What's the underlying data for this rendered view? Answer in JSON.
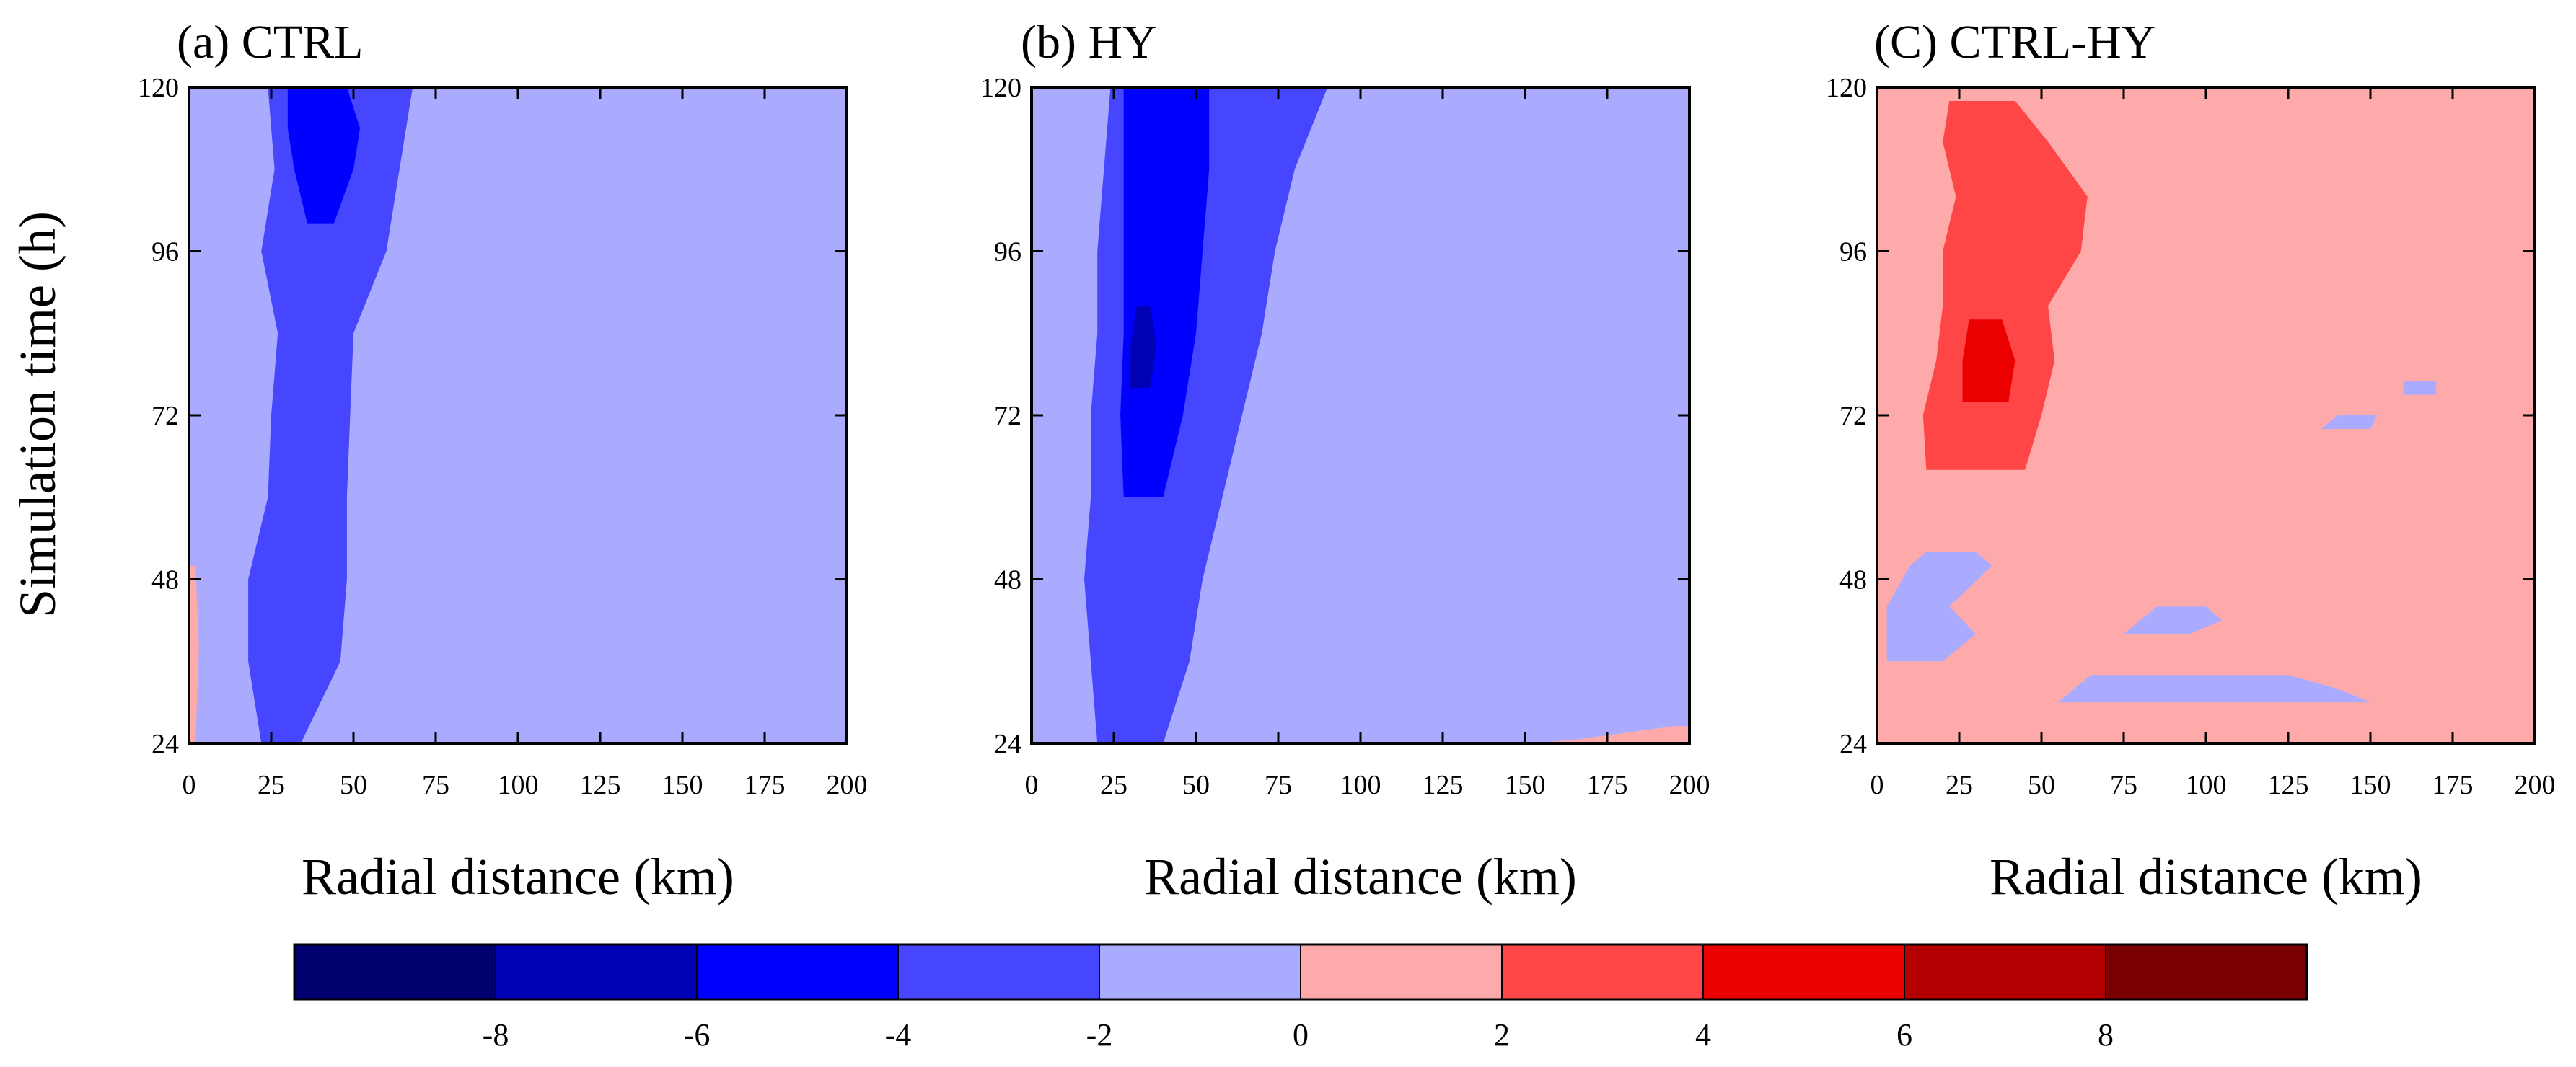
{
  "figure": {
    "shared_ylabel": "Simulation time (h)",
    "colorbar": {
      "bounds": [
        -10,
        -8,
        -6,
        -4,
        -2,
        0,
        2,
        4,
        6,
        8,
        10
      ],
      "tick_values": [
        -8,
        -6,
        -4,
        -2,
        0,
        2,
        4,
        6,
        8
      ],
      "tick_labels": [
        "-8",
        "-6",
        "-4",
        "-2",
        "0",
        "2",
        "4",
        "6",
        "8"
      ],
      "colors": [
        "#00006e",
        "#0000b4",
        "#0000ff",
        "#4646ff",
        "#aaaaff",
        "#ffaaaa",
        "#ff4646",
        "#eb0000",
        "#b40000",
        "#780000"
      ]
    }
  },
  "chart_data": [
    {
      "type": "heatmap",
      "panel_label": "(a) CTRL",
      "title": "(a) CTRL",
      "xlabel": "Radial distance (km)",
      "ylabel": "Simulation time (h)",
      "xlim": [
        0,
        200
      ],
      "ylim": [
        24,
        120
      ],
      "xticks": [
        0,
        25,
        50,
        75,
        100,
        125,
        150,
        175,
        200
      ],
      "xtick_labels": [
        "0",
        "25",
        "50",
        "75",
        "100",
        "125",
        "150",
        "175",
        "200"
      ],
      "yticks": [
        24,
        48,
        72,
        96,
        120
      ],
      "ytick_labels": [
        "24",
        "48",
        "72",
        "96",
        "120"
      ],
      "background_value": -1,
      "features": [
        {
          "band": "-4..-2",
          "value": -3,
          "rows": [
            [
              24,
              22,
              34
            ],
            [
              36,
              18,
              46
            ],
            [
              48,
              18,
              48
            ],
            [
              60,
              24,
              48
            ],
            [
              72,
              25,
              49
            ],
            [
              84,
              27,
              50
            ],
            [
              96,
              22,
              60
            ],
            [
              108,
              26,
              64
            ],
            [
              120,
              24,
              68
            ]
          ]
        },
        {
          "band": "-6..-4",
          "value": -5,
          "rows": [
            [
              100,
              36,
              44
            ],
            [
              108,
              32,
              50
            ],
            [
              114,
              30,
              52
            ],
            [
              120,
              30,
              48
            ]
          ]
        },
        {
          "band": "0..2",
          "value": 1,
          "rows": [
            [
              24,
              0,
              2
            ],
            [
              38,
              0,
              3
            ],
            [
              50,
              0,
              2
            ]
          ]
        }
      ]
    },
    {
      "type": "heatmap",
      "panel_label": "(b) HY",
      "title": "(b) HY",
      "xlabel": "Radial distance (km)",
      "ylabel": "",
      "xlim": [
        0,
        200
      ],
      "ylim": [
        24,
        120
      ],
      "xticks": [
        0,
        25,
        50,
        75,
        100,
        125,
        150,
        175,
        200
      ],
      "xtick_labels": [
        "0",
        "25",
        "50",
        "75",
        "100",
        "125",
        "150",
        "175",
        "200"
      ],
      "yticks": [
        24,
        48,
        72,
        96,
        120
      ],
      "ytick_labels": [
        "24",
        "48",
        "72",
        "96",
        "120"
      ],
      "background_value": -1,
      "features": [
        {
          "band": "-4..-2",
          "value": -3,
          "rows": [
            [
              24,
              20,
              40
            ],
            [
              36,
              18,
              48
            ],
            [
              48,
              16,
              52
            ],
            [
              60,
              18,
              58
            ],
            [
              72,
              18,
              64
            ],
            [
              84,
              20,
              70
            ],
            [
              96,
              20,
              74
            ],
            [
              108,
              22,
              80
            ],
            [
              120,
              24,
              90
            ]
          ]
        },
        {
          "band": "-6..-4",
          "value": -5,
          "rows": [
            [
              60,
              28,
              40
            ],
            [
              72,
              27,
              46
            ],
            [
              84,
              28,
              50
            ],
            [
              96,
              28,
              52
            ],
            [
              108,
              28,
              54
            ],
            [
              120,
              28,
              54
            ]
          ]
        },
        {
          "band": "-8..-6",
          "value": -7,
          "rows": [
            [
              76,
              30,
              36
            ],
            [
              82,
              30,
              38
            ],
            [
              88,
              32,
              36
            ]
          ]
        },
        {
          "band": "0..2",
          "value": 1,
          "rows": [
            [
              24,
              150,
              200
            ],
            [
              24.5,
              165,
              200
            ],
            [
              25.5,
              180,
              200
            ],
            [
              26.5,
              195,
              200
            ]
          ]
        }
      ]
    },
    {
      "type": "heatmap",
      "panel_label": "(C) CTRL-HY",
      "title": "(C) CTRL-HY",
      "xlabel": "Radial distance (km)",
      "ylabel": "",
      "xlim": [
        0,
        200
      ],
      "ylim": [
        24,
        120
      ],
      "xticks": [
        0,
        25,
        50,
        75,
        100,
        125,
        150,
        175,
        200
      ],
      "xtick_labels": [
        "0",
        "25",
        "50",
        "75",
        "100",
        "125",
        "150",
        "175",
        "200"
      ],
      "yticks": [
        24,
        48,
        72,
        96,
        120
      ],
      "ytick_labels": [
        "24",
        "48",
        "72",
        "96",
        "120"
      ],
      "background_value": 1,
      "features": [
        {
          "band": "2..4",
          "value": 3,
          "rows": [
            [
              64,
              15,
              45
            ],
            [
              72,
              14,
              50
            ],
            [
              80,
              18,
              54
            ],
            [
              88,
              20,
              52
            ],
            [
              96,
              20,
              62
            ],
            [
              104,
              24,
              64
            ],
            [
              112,
              20,
              52
            ],
            [
              118,
              22,
              42
            ]
          ]
        },
        {
          "band": "4..6",
          "value": 5,
          "rows": [
            [
              74,
              26,
              40
            ],
            [
              80,
              26,
              42
            ],
            [
              86,
              28,
              38
            ]
          ]
        },
        {
          "band": "-2..0",
          "value": -1,
          "rows": [
            [
              30,
              55,
              150
            ],
            [
              32,
              60,
              140
            ],
            [
              34,
              65,
              125
            ]
          ]
        },
        {
          "band": "-2..0",
          "value": -1,
          "rows": [
            [
              36,
              3,
              20
            ],
            [
              40,
              3,
              30
            ],
            [
              44,
              3,
              22
            ],
            [
              50,
              10,
              35
            ],
            [
              52,
              15,
              30
            ]
          ]
        },
        {
          "band": "-2..0",
          "value": -1,
          "rows": [
            [
              40,
              75,
              95
            ],
            [
              42,
              80,
              105
            ],
            [
              44,
              85,
              100
            ]
          ]
        },
        {
          "band": "-2..0",
          "value": -1,
          "rows": [
            [
              70,
              135,
              150
            ],
            [
              72,
              140,
              152
            ]
          ]
        },
        {
          "band": "-2..0",
          "value": -1,
          "rows": [
            [
              76,
              160,
              170
            ]
          ]
        }
      ]
    }
  ]
}
